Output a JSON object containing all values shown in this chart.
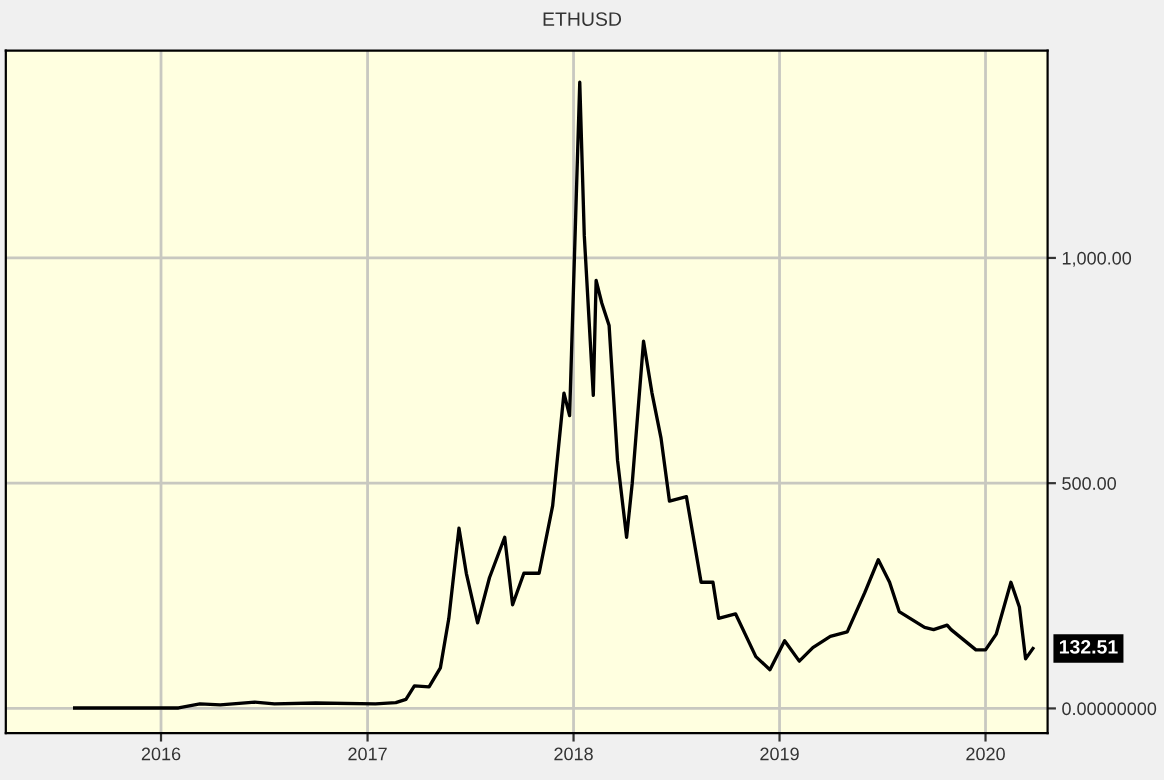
{
  "chart_data": {
    "type": "line",
    "title": "ETHUSD",
    "x": [
      "2015-08-01",
      "2015-11-01",
      "2016-02-01",
      "2016-03-10",
      "2016-04-15",
      "2016-06-15",
      "2016-07-20",
      "2016-10-01",
      "2017-01-15",
      "2017-02-20",
      "2017-03-10",
      "2017-03-25",
      "2017-04-20",
      "2017-05-10",
      "2017-05-25",
      "2017-06-12",
      "2017-06-25",
      "2017-07-15",
      "2017-08-05",
      "2017-09-01",
      "2017-09-15",
      "2017-10-05",
      "2017-11-01",
      "2017-11-25",
      "2017-12-15",
      "2017-12-25",
      "2018-01-12",
      "2018-01-20",
      "2018-02-05",
      "2018-02-10",
      "2018-02-20",
      "2018-03-05",
      "2018-03-20",
      "2018-04-05",
      "2018-04-15",
      "2018-05-05",
      "2018-05-20",
      "2018-06-05",
      "2018-06-20",
      "2018-07-20",
      "2018-08-15",
      "2018-09-05",
      "2018-09-15",
      "2018-10-15",
      "2018-11-20",
      "2018-12-15",
      "2019-01-10",
      "2019-02-05",
      "2019-03-01",
      "2019-04-01",
      "2019-05-01",
      "2019-06-01",
      "2019-06-25",
      "2019-07-15",
      "2019-08-01",
      "2019-09-15",
      "2019-10-01",
      "2019-10-25",
      "2019-11-01",
      "2019-12-15",
      "2020-01-01",
      "2020-01-20",
      "2020-02-15",
      "2020-03-01",
      "2020-03-12",
      "2020-03-25"
    ],
    "series": [
      {
        "color": "#000000",
        "values": [
          1,
          1,
          1,
          10,
          8,
          14,
          10,
          12,
          10,
          13,
          20,
          50,
          48,
          90,
          200,
          400,
          300,
          190,
          290,
          380,
          230,
          300,
          300,
          450,
          700,
          650,
          1390,
          1050,
          695,
          950,
          900,
          850,
          550,
          380,
          500,
          815,
          700,
          600,
          460,
          470,
          280,
          280,
          200,
          210,
          115,
          86,
          150,
          105,
          135,
          160,
          170,
          257,
          330,
          280,
          215,
          180,
          175,
          185,
          175,
          130,
          130,
          165,
          280,
          225,
          110,
          133
        ]
      }
    ],
    "annotations": [
      "132.51"
    ],
    "xlim": [
      "2015-04-01",
      "2020-04-20"
    ],
    "xticks": [
      {
        "value": "2016-01-01",
        "label": "2016"
      },
      {
        "value": "2017-01-01",
        "label": "2017"
      },
      {
        "value": "2018-01-01",
        "label": "2018"
      },
      {
        "value": "2019-01-01",
        "label": "2019"
      },
      {
        "value": "2020-01-01",
        "label": "2020"
      }
    ],
    "ylim": [
      -55,
      1460
    ],
    "yticks": [
      {
        "value": 0,
        "label": "0.00000000"
      },
      {
        "value": 500,
        "label": "500.00"
      },
      {
        "value": 1000,
        "label": "1,000.00"
      }
    ],
    "grid": true,
    "legend": false
  }
}
